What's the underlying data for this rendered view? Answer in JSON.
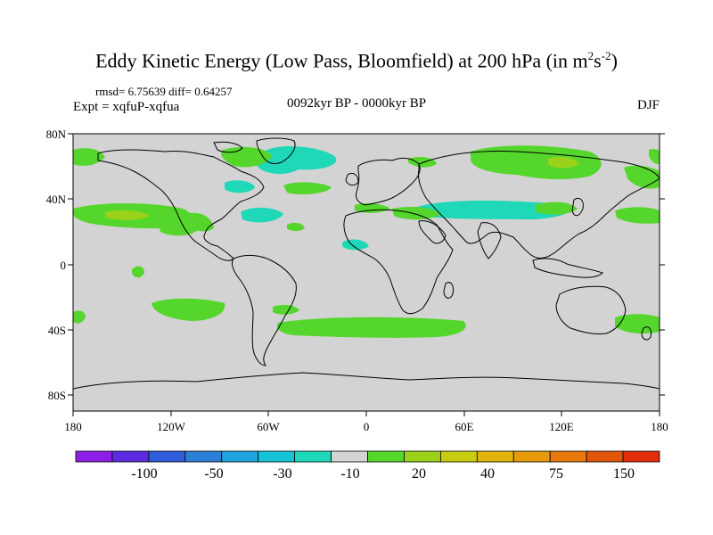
{
  "title_main": "Eddy Kinetic Energy (Low Pass, Bloomfield) at 200 hPa (in m",
  "title_sup1": "2",
  "title_mid": "s",
  "title_sup2": "-2",
  "title_end": ")",
  "stats": "rmsd= 6.75639 diff= 0.64257",
  "experiment": "Expt = xqfuP-xqfua",
  "period": "0092kyr BP - 0000kyr BP",
  "season": "DJF",
  "lat_labels": [
    "80N",
    "40N",
    "0",
    "40S",
    "80S"
  ],
  "lon_labels": [
    "180",
    "120W",
    "60W",
    "0",
    "60E",
    "120E",
    "180"
  ],
  "colorbar": {
    "colors": [
      "#8c1ee6",
      "#5a2be0",
      "#2f5cd8",
      "#2b7fd6",
      "#1fa4dc",
      "#16c4d6",
      "#1ed8b8",
      "#d3d3d3",
      "#55d62c",
      "#9ad219",
      "#c8cc10",
      "#e0b40c",
      "#e69a0c",
      "#e6780c",
      "#e0560c",
      "#e02e0c"
    ],
    "labels": [
      "-100",
      "-50",
      "-30",
      "-10",
      "20",
      "40",
      "75",
      "150"
    ]
  },
  "legend_colors": {
    "ocean_land": "#d3d3d3",
    "green": "#55d62c",
    "light_green": "#9ad219",
    "cyan": "#1ed8b8",
    "coast": "#000000"
  }
}
